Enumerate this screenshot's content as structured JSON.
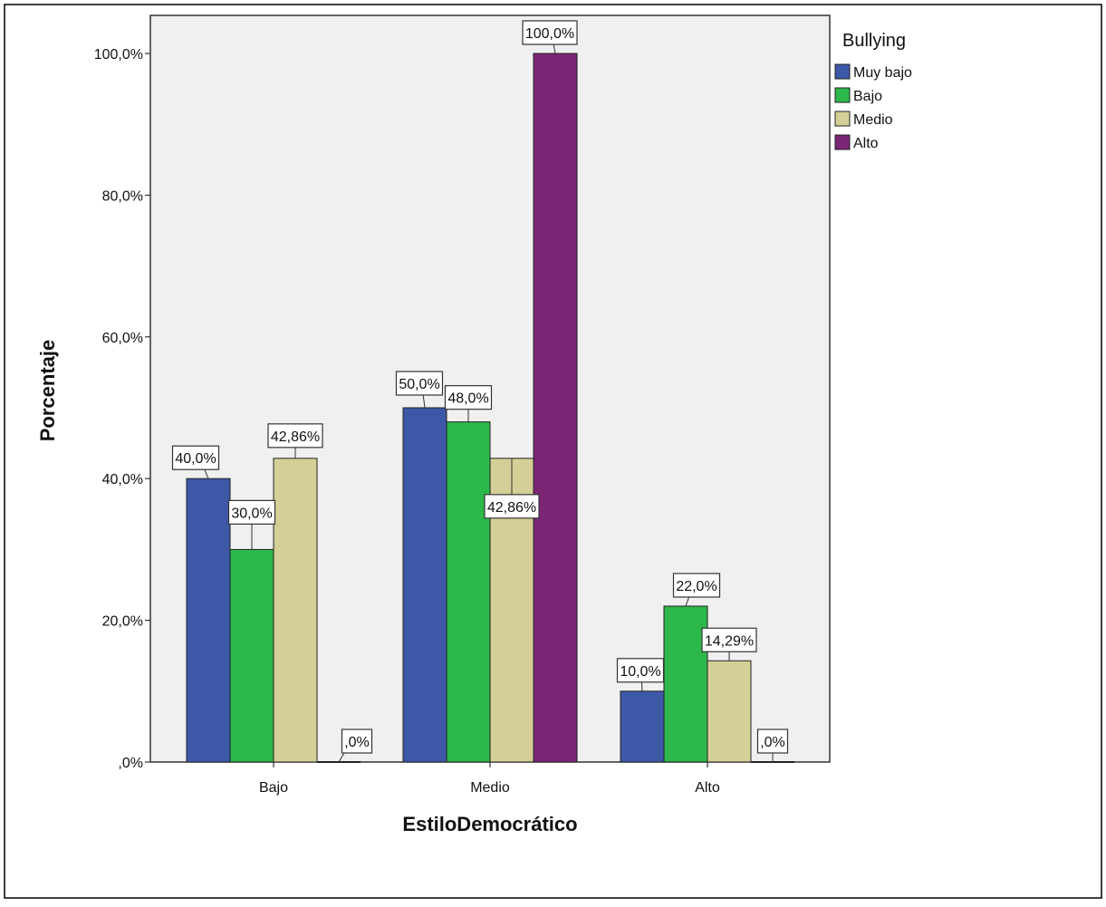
{
  "chart_data": {
    "type": "bar",
    "title": "",
    "xlabel": "EstiloDemocrático",
    "ylabel": "Porcentaje",
    "ylim": [
      0,
      105
    ],
    "yticks": [
      0,
      20,
      40,
      60,
      80,
      100
    ],
    "ytick_labels": [
      ",0%",
      "20,0%",
      "40,0%",
      "60,0%",
      "80,0%",
      "100,0%"
    ],
    "categories": [
      "Bajo",
      "Medio",
      "Alto"
    ],
    "legend": {
      "title": "Bullying",
      "placement": "right"
    },
    "series": [
      {
        "name": "Muy bajo",
        "color": "#3e58a8",
        "values": [
          40.0,
          50.0,
          10.0
        ],
        "labels": [
          "40,0%",
          "50,0%",
          "10,0%"
        ]
      },
      {
        "name": "Bajo",
        "color": "#2db84b",
        "values": [
          30.0,
          48.0,
          22.0
        ],
        "labels": [
          "30,0%",
          "48,0%",
          "22,0%"
        ]
      },
      {
        "name": "Medio",
        "color": "#d4cf96",
        "values": [
          42.86,
          42.86,
          14.29
        ],
        "labels": [
          "42,86%",
          "42,86%",
          "14,29%"
        ]
      },
      {
        "name": "Alto",
        "color": "#7b2575",
        "values": [
          0.0,
          100.0,
          0.0
        ],
        "labels": [
          ",0%",
          "100,0%",
          ",0%"
        ]
      }
    ],
    "grid": false,
    "plot_background": "#f0f0f0"
  }
}
